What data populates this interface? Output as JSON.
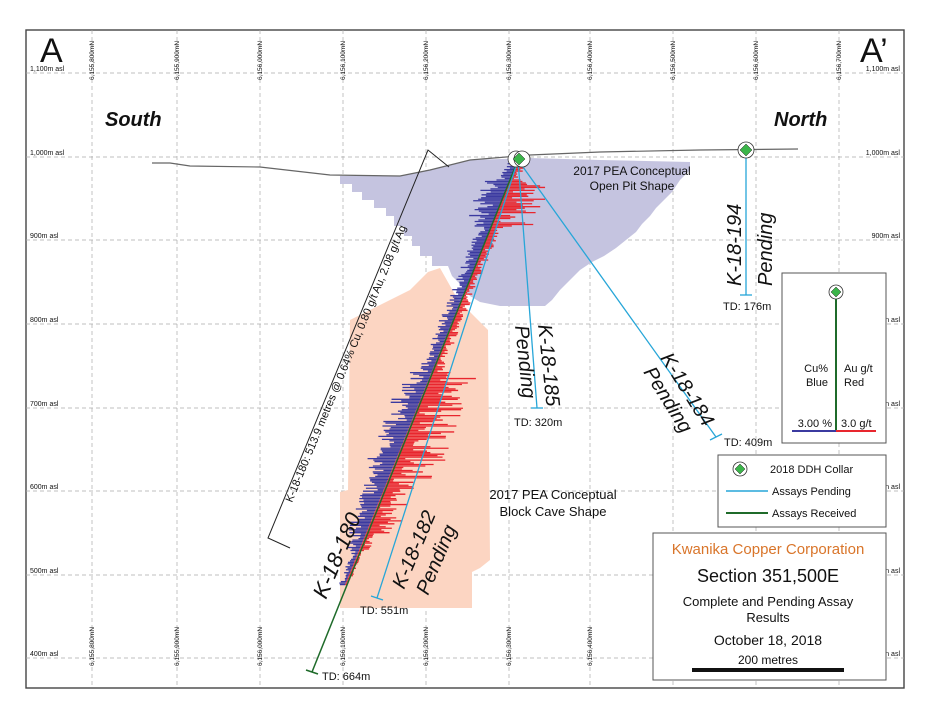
{
  "corner_labels": {
    "left": "A",
    "right": "A’"
  },
  "direction_labels": {
    "south": "South",
    "north": "North"
  },
  "elevation_labels": [
    "1,100m asl",
    "1,000m asl",
    "900m asl",
    "800m asl",
    "700m asl",
    "600m asl",
    "500m asl",
    "400m asl"
  ],
  "northing_labels": [
    "6,155,800mN",
    "6,155,900mN",
    "6,156,000mN",
    "6,156,100mN",
    "6,156,200mN",
    "6,156,300mN",
    "6,156,400mN",
    "6,156,500mN",
    "6,156,600mN",
    "6,156,700mN"
  ],
  "shapes": {
    "open_pit": {
      "line1": "2017 PEA Conceptual",
      "line2": "Open Pit Shape",
      "fill": "#c5c4e0"
    },
    "block_cave": {
      "line1": "2017 PEA Conceptual",
      "line2": "Block Cave Shape",
      "fill": "#fcd5c2"
    }
  },
  "intercept": "K-18-180: 513.9 metres @ 0.64% Cu, 0.80 g/t Au, 2.08 g/t Ag",
  "holes": [
    {
      "id": "K-18-180",
      "status": "",
      "td": "TD: 664m"
    },
    {
      "id": "K-18-182",
      "status": "Pending",
      "td": "TD: 551m"
    },
    {
      "id": "K-18-185",
      "status": "Pending",
      "td": "TD: 320m"
    },
    {
      "id": "K-18-184",
      "status": "Pending",
      "td": "TD: 409m"
    },
    {
      "id": "K-18-194",
      "status": "Pending",
      "td": "TD: 176m"
    }
  ],
  "scale_inset": {
    "left_label": [
      "Cu%",
      "Blue"
    ],
    "right_label": [
      "Au g/t",
      "Red"
    ],
    "left_value": "3.00 %",
    "right_value": "3.0 g/t"
  },
  "legend": {
    "items": [
      {
        "label": "2018 DDH Collar",
        "icon": "diamond-collar-icon"
      },
      {
        "label": "Assays Pending",
        "color": "#27a6d8"
      },
      {
        "label": "Assays Received",
        "color": "#1f6b2a"
      }
    ]
  },
  "title_block": {
    "company": "Kwanika Copper Corporation",
    "section": "Section 351,500E",
    "subtitle_line1": "Complete and Pending Assay",
    "subtitle_line2": "Results",
    "date": "October 18, 2018",
    "scale": "200 metres",
    "company_color": "#d9752a"
  },
  "colors": {
    "cu": "#3b3aa0",
    "au": "#e8262e",
    "pending": "#27a6d8",
    "received": "#1f6b2a",
    "collar": "#3bb54a"
  }
}
